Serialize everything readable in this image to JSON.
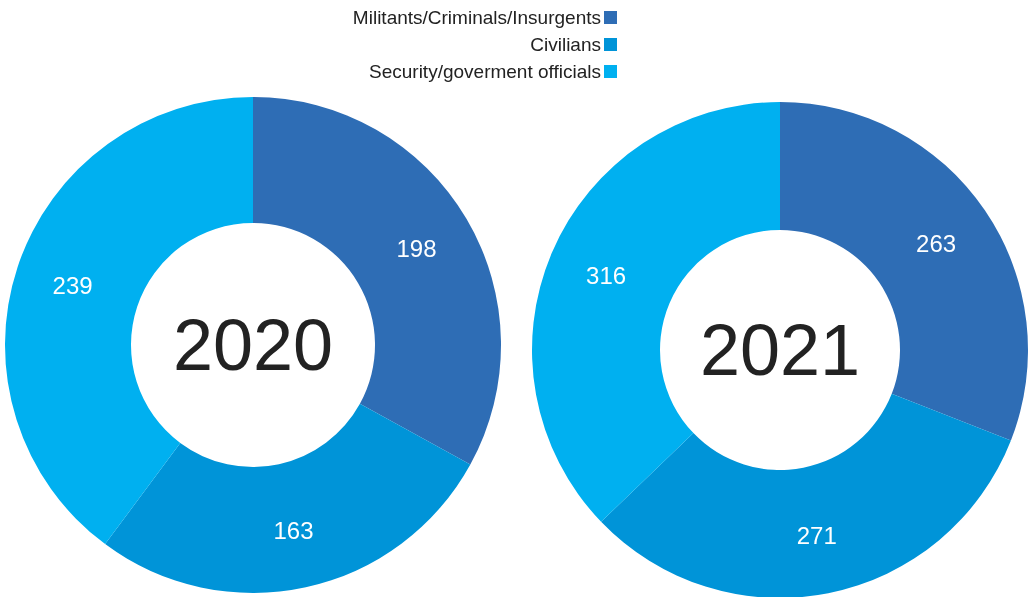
{
  "chart_data": [
    {
      "type": "donut",
      "title": "2020",
      "categories": [
        null,
        null,
        null
      ],
      "values": [
        198,
        163,
        239
      ],
      "colors": [
        "#2e6db5",
        "#0094d8",
        "#00b0f0"
      ],
      "data_labels": true
    },
    {
      "type": "donut",
      "title": "2021",
      "categories": [
        "Militants/Criminals/Insurgents",
        "Civilians",
        "Security/goverment officials"
      ],
      "values": [
        263,
        271,
        316
      ],
      "colors": [
        "#2e6db5",
        "#0094d8",
        "#00b0f0"
      ],
      "data_labels": true,
      "legend": "top"
    }
  ]
}
